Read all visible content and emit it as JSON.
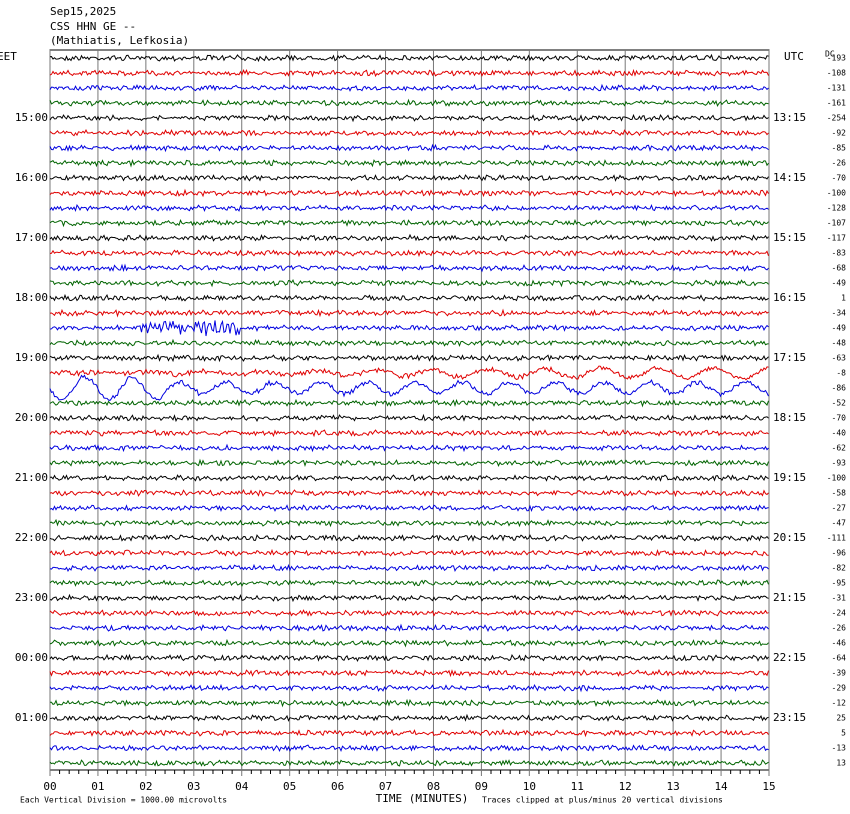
{
  "header": {
    "date": "Sep15,2025",
    "station": "CSS HHN GE --",
    "location": "(Mathiatis, Lefkosia)"
  },
  "left_axis": {
    "title": "EET",
    "labels": [
      "15:00",
      "16:00",
      "17:00",
      "18:00",
      "19:00",
      "20:00",
      "21:00",
      "22:00",
      "23:00",
      "00:00",
      "01:00"
    ]
  },
  "right_axis": {
    "title": "UTC",
    "labels": [
      "13:15",
      "14:15",
      "15:15",
      "16:15",
      "17:15",
      "18:15",
      "19:15",
      "20:15",
      "21:15",
      "22:15",
      "23:15"
    ]
  },
  "dc": {
    "title": "DC",
    "values": [
      -193,
      -108,
      -131,
      -161,
      -254,
      -92,
      -85,
      -26,
      -70,
      -100,
      -128,
      -107,
      -117,
      -83,
      -68,
      -49,
      1,
      -34,
      -49,
      -48,
      -63,
      -8,
      -86,
      -52,
      -70,
      -40,
      -62,
      -93,
      -100,
      -58,
      -27,
      -47,
      -111,
      -96,
      -82,
      -95,
      -31,
      -24,
      -26,
      -46,
      -64,
      -39,
      -29,
      -12,
      25,
      5,
      -13,
      13
    ]
  },
  "x_axis": {
    "title": "TIME (MINUTES)",
    "ticks": [
      "00",
      "01",
      "02",
      "03",
      "04",
      "05",
      "06",
      "07",
      "08",
      "09",
      "10",
      "11",
      "12",
      "13",
      "14",
      "15"
    ]
  },
  "notes": {
    "scale": "Each Vertical Division = 1000.00 microvolts",
    "clip": "Traces clipped at plus/minus 20 vertical divisions"
  }
}
